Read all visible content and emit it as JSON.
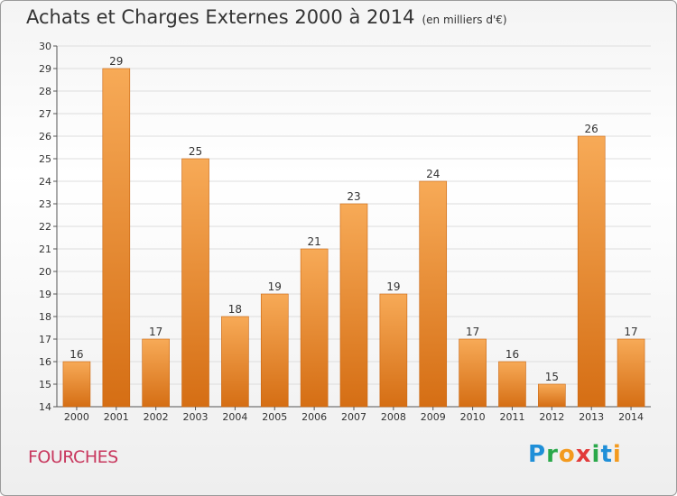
{
  "title": "Achats et Charges Externes 2000 à 2014",
  "subtitle": "(en milliers d'€)",
  "commune": "FOURCHES",
  "logo": {
    "letters": [
      "P",
      "r",
      "o",
      "x",
      "i",
      "t",
      "i"
    ],
    "colors": [
      "#1f8fd8",
      "#2aa84a",
      "#f39a1e",
      "#e23a3a",
      "#2aa84a",
      "#1f8fd8",
      "#f39a1e"
    ]
  },
  "colors": {
    "bar": "#f28f2e",
    "bar_dark": "#d56e14",
    "bar_light": "#f7aa57"
  },
  "chart_data": {
    "type": "bar",
    "categories": [
      "2000",
      "2001",
      "2002",
      "2003",
      "2004",
      "2005",
      "2006",
      "2007",
      "2008",
      "2009",
      "2010",
      "2011",
      "2012",
      "2013",
      "2014"
    ],
    "values": [
      16,
      29,
      17,
      25,
      18,
      19,
      21,
      23,
      19,
      24,
      17,
      16,
      15,
      26,
      17
    ],
    "data_labels": [
      "16",
      "29",
      "17",
      "25",
      "18",
      "19",
      "21",
      "23",
      "19",
      "24",
      "17",
      "16",
      "15",
      "26",
      "17"
    ],
    "yticks": [
      "14",
      "15",
      "16",
      "17",
      "18",
      "19",
      "20",
      "21",
      "22",
      "23",
      "24",
      "25",
      "26",
      "27",
      "28",
      "29",
      "30"
    ],
    "ylim": [
      14,
      30
    ],
    "grid": true,
    "legend": "none"
  }
}
